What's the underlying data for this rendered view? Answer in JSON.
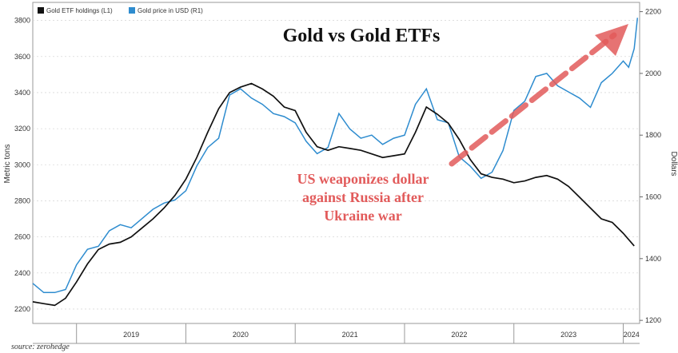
{
  "chart_data": {
    "type": "line",
    "title": "Gold vs Gold ETFs",
    "ylabel_left": "Metric tons",
    "ylabel_right": "Dollars",
    "ylim_left": [
      2120,
      3900
    ],
    "ylim_right": [
      1190,
      2230
    ],
    "yticks_left": [
      "2200",
      "2400",
      "2600",
      "2800",
      "3000",
      "3200",
      "3400",
      "3600",
      "3800"
    ],
    "yticks_right": [
      "1200",
      "1400",
      "1600",
      "1800",
      "2000",
      "2200"
    ],
    "xlim": [
      2018.6,
      2024.15
    ],
    "x_year_labels": [
      "2019",
      "2020",
      "2021",
      "2022",
      "2023",
      "2024"
    ],
    "grid": true,
    "legend_position": "top-left",
    "annotation": [
      "US weaponizes dollar",
      "against Russia after",
      "Ukraine war"
    ],
    "source": "source: zerohedge",
    "series": [
      {
        "name": "Gold ETF holdings (L1)",
        "axis": "left",
        "color": "#111111",
        "points": [
          [
            2018.6,
            2240
          ],
          [
            2018.7,
            2230
          ],
          [
            2018.8,
            2220
          ],
          [
            2018.9,
            2260
          ],
          [
            2019.0,
            2350
          ],
          [
            2019.1,
            2450
          ],
          [
            2019.2,
            2530
          ],
          [
            2019.3,
            2560
          ],
          [
            2019.4,
            2570
          ],
          [
            2019.5,
            2600
          ],
          [
            2019.6,
            2650
          ],
          [
            2019.7,
            2700
          ],
          [
            2019.8,
            2760
          ],
          [
            2019.9,
            2830
          ],
          [
            2020.0,
            2920
          ],
          [
            2020.1,
            3040
          ],
          [
            2020.2,
            3180
          ],
          [
            2020.3,
            3310
          ],
          [
            2020.4,
            3400
          ],
          [
            2020.5,
            3430
          ],
          [
            2020.6,
            3450
          ],
          [
            2020.7,
            3420
          ],
          [
            2020.8,
            3380
          ],
          [
            2020.9,
            3320
          ],
          [
            2021.0,
            3300
          ],
          [
            2021.1,
            3180
          ],
          [
            2021.2,
            3100
          ],
          [
            2021.3,
            3080
          ],
          [
            2021.4,
            3100
          ],
          [
            2021.5,
            3090
          ],
          [
            2021.6,
            3080
          ],
          [
            2021.7,
            3060
          ],
          [
            2021.8,
            3040
          ],
          [
            2021.9,
            3050
          ],
          [
            2022.0,
            3060
          ],
          [
            2022.1,
            3180
          ],
          [
            2022.2,
            3320
          ],
          [
            2022.3,
            3280
          ],
          [
            2022.4,
            3230
          ],
          [
            2022.5,
            3140
          ],
          [
            2022.6,
            3030
          ],
          [
            2022.7,
            2950
          ],
          [
            2022.8,
            2930
          ],
          [
            2022.9,
            2920
          ],
          [
            2023.0,
            2900
          ],
          [
            2023.1,
            2910
          ],
          [
            2023.2,
            2930
          ],
          [
            2023.3,
            2940
          ],
          [
            2023.4,
            2920
          ],
          [
            2023.5,
            2880
          ],
          [
            2023.6,
            2820
          ],
          [
            2023.7,
            2760
          ],
          [
            2023.8,
            2700
          ],
          [
            2023.9,
            2680
          ],
          [
            2024.0,
            2620
          ],
          [
            2024.1,
            2550
          ]
        ]
      },
      {
        "name": "Gold price in USD (R1)",
        "axis": "right",
        "color": "#2e8ccf",
        "points": [
          [
            2018.6,
            1320
          ],
          [
            2018.7,
            1290
          ],
          [
            2018.8,
            1290
          ],
          [
            2018.9,
            1300
          ],
          [
            2019.0,
            1380
          ],
          [
            2019.1,
            1430
          ],
          [
            2019.2,
            1440
          ],
          [
            2019.3,
            1490
          ],
          [
            2019.4,
            1510
          ],
          [
            2019.5,
            1500
          ],
          [
            2019.6,
            1530
          ],
          [
            2019.7,
            1560
          ],
          [
            2019.8,
            1580
          ],
          [
            2019.9,
            1590
          ],
          [
            2020.0,
            1620
          ],
          [
            2020.1,
            1700
          ],
          [
            2020.2,
            1760
          ],
          [
            2020.3,
            1790
          ],
          [
            2020.4,
            1930
          ],
          [
            2020.5,
            1950
          ],
          [
            2020.6,
            1920
          ],
          [
            2020.7,
            1900
          ],
          [
            2020.8,
            1870
          ],
          [
            2020.9,
            1860
          ],
          [
            2021.0,
            1840
          ],
          [
            2021.1,
            1780
          ],
          [
            2021.2,
            1740
          ],
          [
            2021.3,
            1760
          ],
          [
            2021.4,
            1870
          ],
          [
            2021.5,
            1820
          ],
          [
            2021.6,
            1790
          ],
          [
            2021.7,
            1800
          ],
          [
            2021.8,
            1770
          ],
          [
            2021.9,
            1790
          ],
          [
            2022.0,
            1800
          ],
          [
            2022.1,
            1900
          ],
          [
            2022.2,
            1950
          ],
          [
            2022.3,
            1850
          ],
          [
            2022.4,
            1840
          ],
          [
            2022.5,
            1730
          ],
          [
            2022.6,
            1700
          ],
          [
            2022.7,
            1660
          ],
          [
            2022.8,
            1680
          ],
          [
            2022.9,
            1750
          ],
          [
            2023.0,
            1880
          ],
          [
            2023.1,
            1910
          ],
          [
            2023.2,
            1990
          ],
          [
            2023.3,
            2000
          ],
          [
            2023.4,
            1960
          ],
          [
            2023.5,
            1940
          ],
          [
            2023.6,
            1920
          ],
          [
            2023.7,
            1890
          ],
          [
            2023.8,
            1970
          ],
          [
            2023.9,
            2000
          ],
          [
            2024.0,
            2040
          ],
          [
            2024.05,
            2020
          ],
          [
            2024.1,
            2080
          ],
          [
            2024.13,
            2180
          ]
        ]
      }
    ]
  }
}
